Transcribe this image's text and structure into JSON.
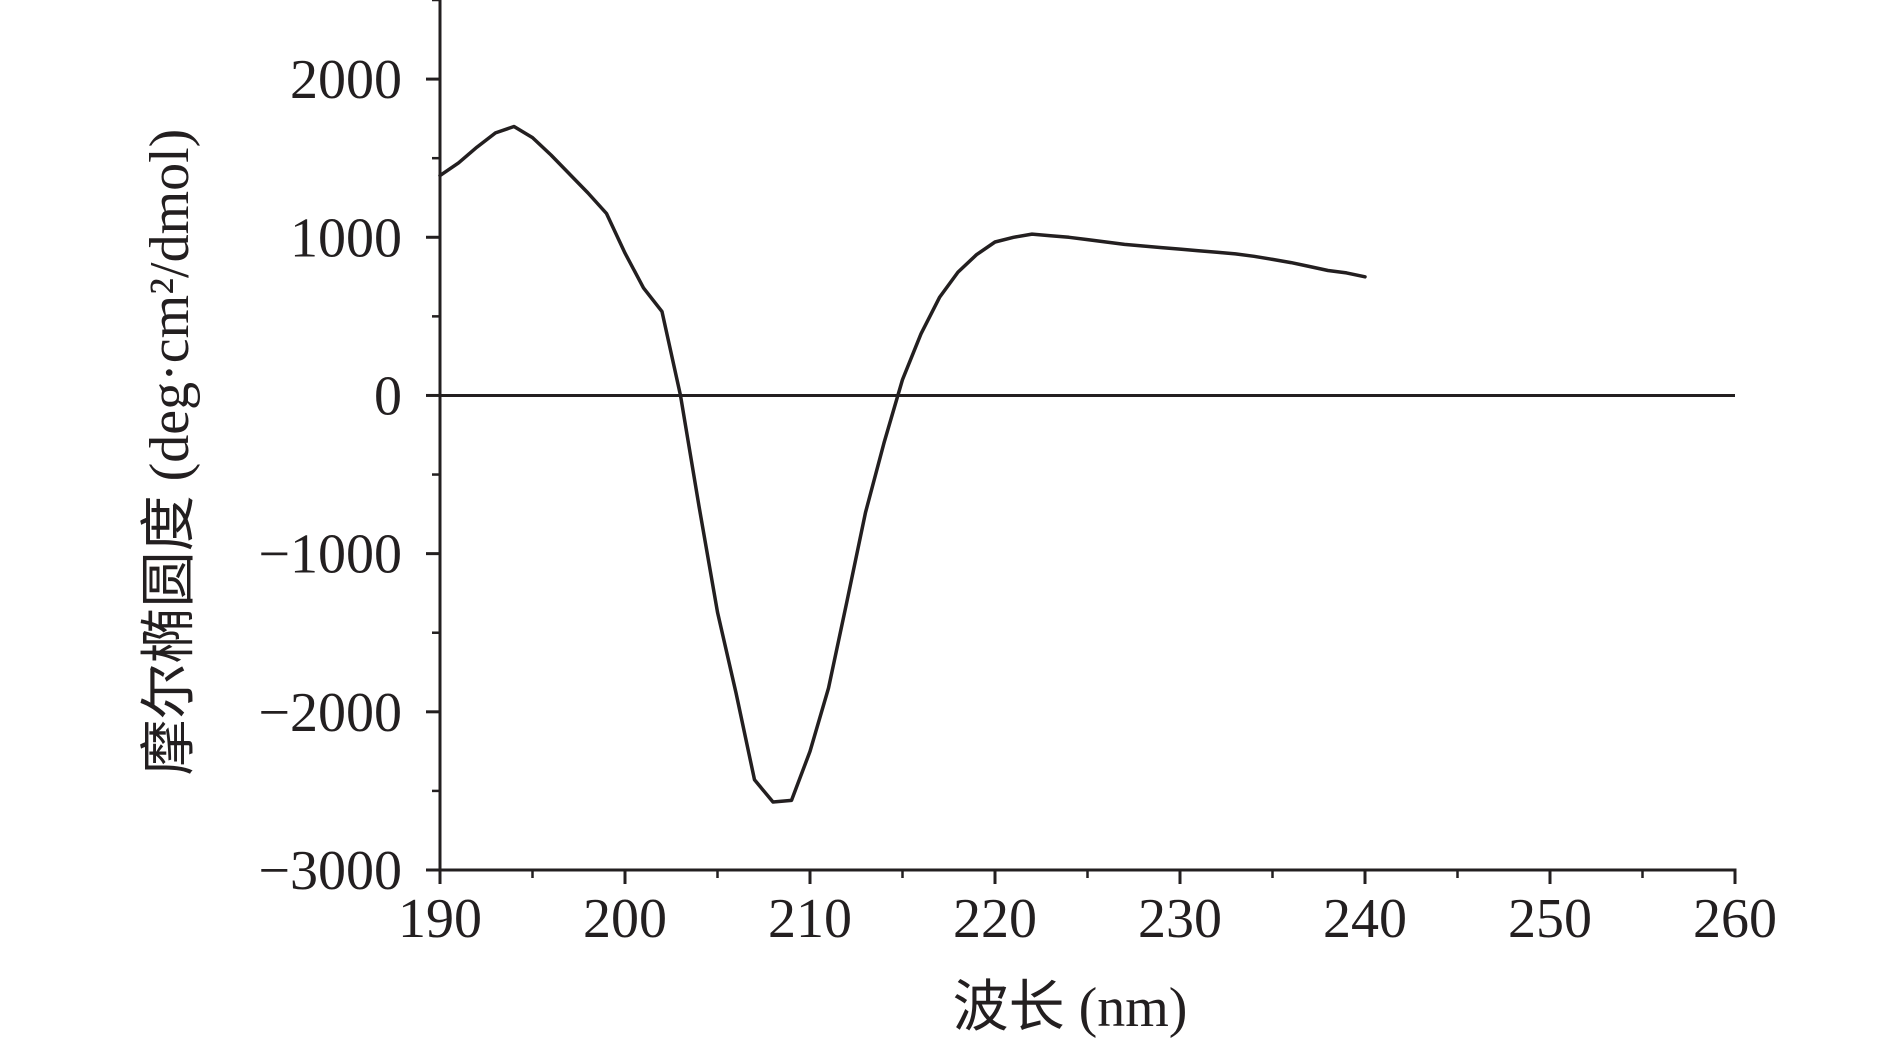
{
  "chart_data": {
    "type": "line",
    "title": "",
    "xlabel": "波长 (nm)",
    "ylabel": "摩尔椭圆度 (deg·cm²/dmol)",
    "xlim": [
      190,
      260
    ],
    "ylim": [
      -3000,
      2500
    ],
    "xticks": [
      190,
      200,
      210,
      220,
      230,
      240,
      250,
      260
    ],
    "yticks": [
      -3000,
      -2000,
      -1000,
      0,
      1000,
      2000
    ],
    "xtick_labels": [
      "190",
      "200",
      "210",
      "220",
      "230",
      "240",
      "250",
      "260"
    ],
    "ytick_labels": [
      "−3000",
      "−2000",
      "−1000",
      "0",
      "1000",
      "2000"
    ],
    "grid": false,
    "legend": "none",
    "zero_line": true,
    "line_color": "#231f20",
    "series": [
      {
        "x": [
          190,
          191,
          192,
          193,
          194,
          195,
          196,
          197,
          198,
          199,
          200,
          201,
          202,
          203,
          204,
          205,
          206,
          207,
          208,
          209,
          210,
          211,
          212,
          213,
          214,
          215,
          216,
          217,
          218,
          219,
          220,
          221,
          222,
          223,
          224,
          225,
          226,
          227,
          228,
          229,
          230,
          231,
          232,
          233,
          234,
          235,
          236,
          237,
          238,
          239,
          240
        ],
        "y": [
          1390,
          1470,
          1570,
          1660,
          1700,
          1630,
          1520,
          1400,
          1280,
          1150,
          900,
          680,
          530,
          0,
          -700,
          -1370,
          -1880,
          -2430,
          -2570,
          -2560,
          -2250,
          -1850,
          -1300,
          -740,
          -300,
          100,
          390,
          620,
          780,
          890,
          970,
          1000,
          1020,
          1010,
          1000,
          985,
          970,
          955,
          945,
          935,
          925,
          915,
          905,
          895,
          880,
          860,
          840,
          815,
          790,
          775,
          750
        ]
      }
    ]
  }
}
